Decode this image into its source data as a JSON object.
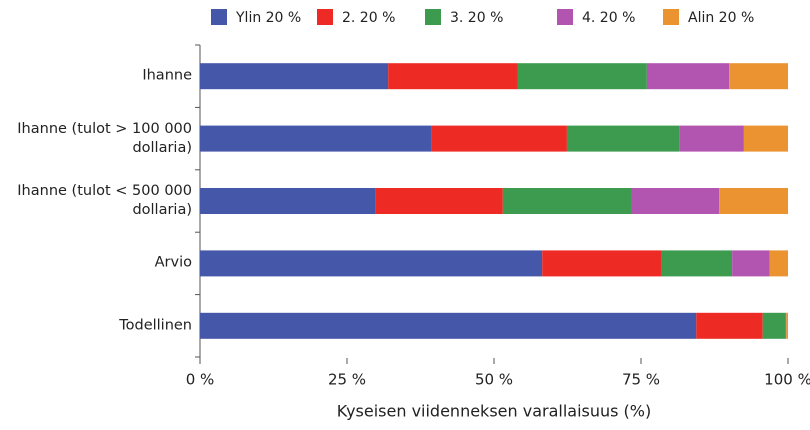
{
  "chart_data": {
    "type": "stacked-barh",
    "xlabel": "Kyseisen viidenneksen varallaisuus (%)",
    "categories": [
      "Ihanne",
      "Ihanne (tulot > 100 000 dollaria)",
      "Ihanne (tulot < 500 000 dollaria)",
      "Arvio",
      "Todellinen"
    ],
    "series": [
      {
        "name": "Ylin 20 %",
        "color": "#4557a8",
        "values": [
          32,
          39.3,
          29.9,
          58.2,
          84.4
        ]
      },
      {
        "name": "2. 20 %",
        "color": "#ee2a24",
        "values": [
          22,
          23.1,
          21.6,
          20.2,
          11.3
        ]
      },
      {
        "name": "3. 20 %",
        "color": "#3d9b4f",
        "values": [
          22,
          19.2,
          21.8,
          12.1,
          3.8
        ]
      },
      {
        "name": "4. 20 %",
        "color": "#b255b0",
        "values": [
          14,
          10.9,
          15,
          6.4,
          0.2
        ]
      },
      {
        "name": "Alin 20 %",
        "color": "#ea9330",
        "values": [
          10,
          7.5,
          11.7,
          3.1,
          0.3
        ]
      }
    ],
    "xlim": [
      0,
      100
    ],
    "xticks": [
      {
        "value": 0,
        "label": "0 %"
      },
      {
        "value": 25,
        "label": "25 %"
      },
      {
        "value": 50,
        "label": "50 %"
      },
      {
        "value": 75,
        "label": "75 %"
      },
      {
        "value": 100,
        "label": "100 %"
      }
    ],
    "legend": "top"
  }
}
